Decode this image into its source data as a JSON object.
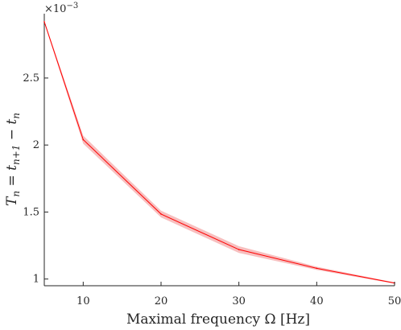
{
  "chart_data": {
    "type": "line",
    "xlabel": "Maximal frequency Ω [Hz]",
    "ylabel": "T_n = t_{n+1} − t_n",
    "y_multiplier": "×10",
    "y_multiplier_exponent": "−3",
    "xlim": [
      5,
      50
    ],
    "ylim": [
      0.95,
      2.95
    ],
    "x_ticks": [
      10,
      20,
      30,
      40,
      50
    ],
    "x_tick_labels": [
      "10",
      "20",
      "30",
      "40",
      "50"
    ],
    "y_ticks": [
      1.0,
      1.5,
      2.0,
      2.5
    ],
    "y_tick_labels": [
      "1",
      "1.5",
      "2",
      "2.5"
    ],
    "grid": false,
    "series": [
      {
        "x": [
          5,
          10,
          20,
          30,
          40,
          50
        ],
        "values": [
          2.92,
          2.04,
          1.485,
          1.22,
          1.08,
          0.97
        ],
        "band_half_width": [
          0.01,
          0.03,
          0.025,
          0.025,
          0.012,
          0.005
        ],
        "color": "#ff0000",
        "band_color": "#f4aaaa"
      }
    ]
  }
}
